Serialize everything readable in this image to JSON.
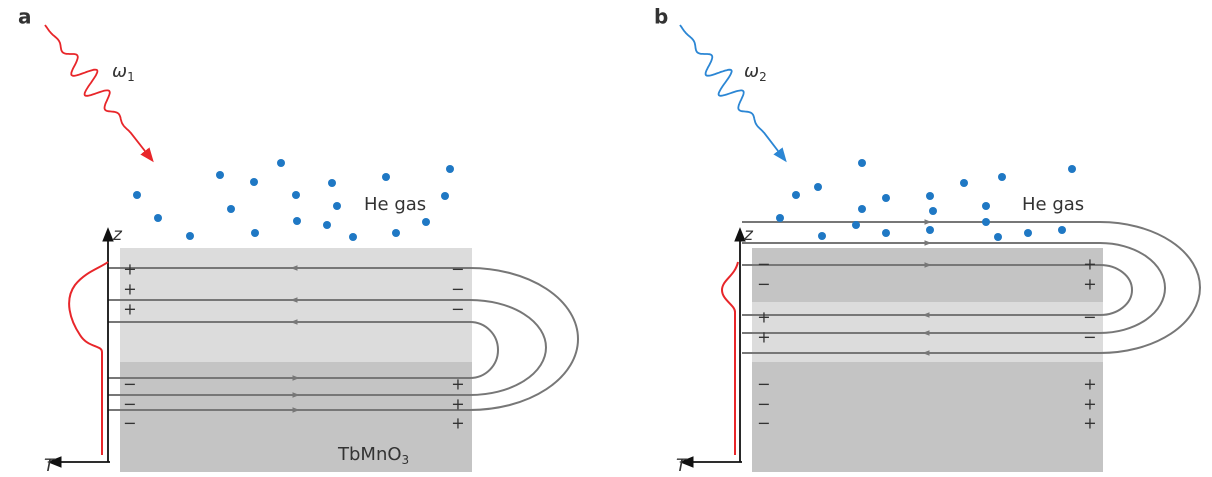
{
  "panels": [
    {
      "label": "a",
      "wave_symbol": "ω",
      "wave_sub": "1",
      "gas_label": "He gas",
      "material": "TbMnO",
      "material_sub": "3",
      "axis_z": "z",
      "axis_t": "T",
      "left_signs": [
        [
          "+",
          "+",
          "+"
        ],
        [
          "−",
          "−",
          "−"
        ]
      ],
      "right_signs": [
        [
          "−",
          "−",
          "−"
        ],
        [
          "+",
          "+",
          "+"
        ]
      ]
    },
    {
      "label": "b",
      "wave_symbol": "ω",
      "wave_sub": "2",
      "gas_label": "He gas",
      "axis_z": "z",
      "axis_t": "T",
      "left_signs": [
        [
          "−",
          "−"
        ],
        [
          "+",
          "+"
        ],
        [
          "−",
          "−",
          "−"
        ]
      ],
      "right_signs": [
        [
          "+",
          "+"
        ],
        [
          "−",
          "−"
        ],
        [
          "+",
          "+",
          "+"
        ]
      ]
    }
  ]
}
